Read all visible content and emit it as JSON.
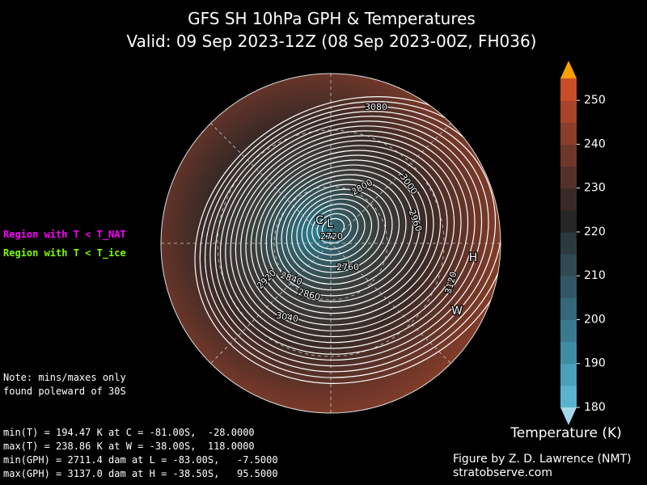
{
  "title": [
    "GFS SH 10hPa GPH & Temperatures",
    "Valid: 09 Sep 2023-12Z  (08 Sep 2023-00Z, FH036)"
  ],
  "legend": [
    {
      "label": "Region with T < T_NAT",
      "color": "#ff00ff"
    },
    {
      "label": "Region with T < T_ice",
      "color": "#7fff00"
    }
  ],
  "note": [
    "Note: mins/maxes only",
    "found poleward of 30S"
  ],
  "stats": [
    "min(T) = 194.47 K at C = -81.00S,  -28.0000",
    "max(T) = 238.86 K at W = -38.00S,  118.0000",
    "min(GPH) = 2711.4 dam at L = -83.00S,   -7.5000",
    "max(GPH) = 3137.0 dam at H = -38.50S,   95.5000"
  ],
  "credit": [
    "Figure by Z. D. Lawrence (NMT)",
    "stratobserve.com"
  ],
  "map": {
    "contour_labels": [
      3080,
      2800,
      3000,
      2960,
      2720,
      2760,
      2840,
      2860,
      2920,
      3040,
      3120
    ],
    "markers": [
      "C",
      "L",
      "H",
      "W"
    ]
  },
  "colorbar": {
    "label": "Temperature (K)",
    "ticks": [
      180,
      190,
      200,
      210,
      220,
      230,
      240,
      250
    ],
    "range": [
      180,
      255
    ],
    "colors": [
      "#5ab4d0",
      "#4a9fbb",
      "#3f8ca5",
      "#397a90",
      "#35687a",
      "#325865",
      "#2f4a52",
      "#2b3a3e",
      "#262626",
      "#3a2a26",
      "#553028",
      "#6f3729",
      "#8b3e2a",
      "#a8452a",
      "#c94e27"
    ],
    "under": "#a6d8ec",
    "over": "#f5a100"
  }
}
